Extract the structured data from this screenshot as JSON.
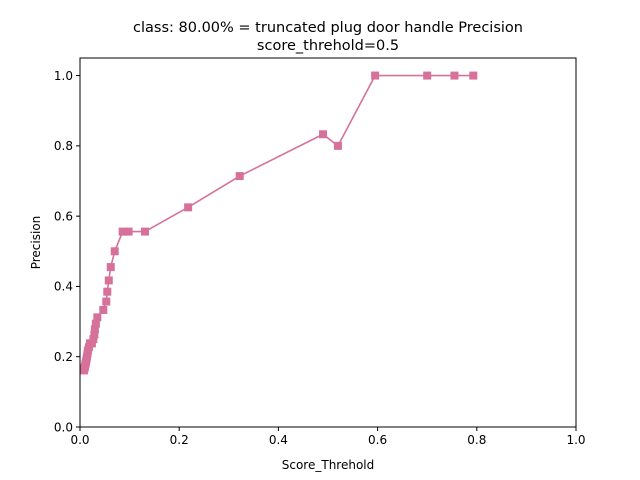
{
  "chart_data": {
    "type": "line",
    "title": "class: 80.00% = truncated plug door handle Precision",
    "subtitle": "score_threhold=0.5",
    "xlabel": "Score_Threhold",
    "ylabel": "Precision",
    "xlim": [
      0.0,
      1.0
    ],
    "ylim": [
      0.0,
      1.05
    ],
    "xticks": [
      "0.0",
      "0.2",
      "0.4",
      "0.6",
      "0.8",
      "1.0"
    ],
    "yticks": [
      "0.0",
      "0.2",
      "0.4",
      "0.6",
      "0.8",
      "1.0"
    ],
    "grid": false,
    "legend": "none",
    "color": "#d6719a",
    "marker": "square",
    "series": [
      {
        "x": [
          0.793,
          0.755,
          0.7,
          0.595,
          0.52,
          0.49,
          0.322,
          0.218,
          0.131,
          0.098,
          0.086,
          0.07,
          0.062,
          0.058,
          0.055,
          0.053,
          0.047,
          0.035,
          0.032,
          0.03,
          0.029,
          0.027,
          0.024,
          0.02,
          0.018,
          0.016,
          0.015,
          0.014,
          0.013,
          0.012,
          0.011,
          0.01,
          0.009,
          0.008
        ],
        "y": [
          1.0,
          1.0,
          1.0,
          1.0,
          0.8,
          0.833,
          0.714,
          0.625,
          0.556,
          0.556,
          0.556,
          0.5,
          0.455,
          0.417,
          0.385,
          0.357,
          0.333,
          0.312,
          0.294,
          0.278,
          0.263,
          0.25,
          0.238,
          0.238,
          0.227,
          0.217,
          0.208,
          0.2,
          0.192,
          0.185,
          0.179,
          0.172,
          0.167,
          0.161
        ]
      }
    ]
  }
}
